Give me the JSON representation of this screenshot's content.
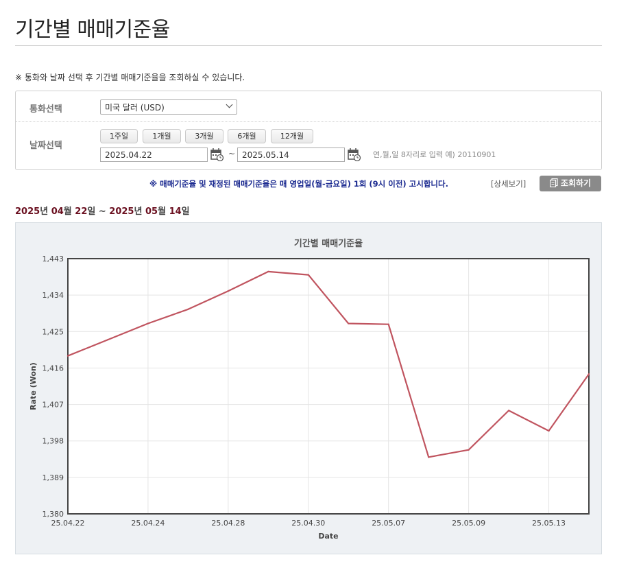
{
  "page_title": "기간별 매매기준율",
  "notice": "※ 통화와 날짜 선택 후 기간별 매매기준율을 조회하실 수 있습니다.",
  "search": {
    "currency_label": "통화선택",
    "currency_value": "미국 달러 (USD)",
    "date_label": "날짜선택",
    "period_buttons": [
      "1주일",
      "1개월",
      "3개월",
      "6개월",
      "12개월"
    ],
    "start_date": "2025.04.22",
    "end_date": "2025.05.14",
    "separator": "~",
    "date_hint": "연,월,일 8자리로 입력 예) 20110901"
  },
  "info": {
    "text": "※ 매매기준율 및 재정된 매매기준율은 매 영업일(월-금요일) 1회 (9시 이전) 고시합니다.",
    "detail_link": "[상세보기]",
    "query_button": "조회하기"
  },
  "range": {
    "y1": "2025",
    "m1": "04",
    "d1": "22",
    "y2": "2025",
    "m2": "05",
    "d2": "14",
    "suffix_year": "년",
    "suffix_month": "월",
    "suffix_day": "일",
    "tilde": " ~ "
  },
  "colors": {
    "line": "#c0545f",
    "title_rule": "#cfcfcf",
    "info_text": "#1b2a90",
    "range_digits": "#6a0f1f",
    "query_button_bg": "#8a8a8a"
  },
  "chart_data": {
    "type": "line",
    "title": "기간별 매매기준율",
    "xlabel": "Date",
    "ylabel": "Rate (Won)",
    "ylim": [
      1380,
      1443
    ],
    "yticks": [
      1380,
      1389,
      1398,
      1407,
      1416,
      1425,
      1434,
      1443
    ],
    "ytick_labels": [
      "1,380",
      "1,389",
      "1,398",
      "1,407",
      "1,416",
      "1,425",
      "1,434",
      "1,443"
    ],
    "x_tick_labels": [
      "25.04.22",
      "25.04.24",
      "25.04.28",
      "25.04.30",
      "25.05.07",
      "25.05.09",
      "25.05.13"
    ],
    "x_tick_indices": [
      0,
      2,
      4,
      6,
      8,
      10,
      12
    ],
    "x": [
      "25.04.22",
      "25.04.23",
      "25.04.24",
      "25.04.25",
      "25.04.28",
      "25.04.29",
      "25.04.30",
      "25.05.02",
      "25.05.07",
      "25.05.08",
      "25.05.09",
      "25.05.12",
      "25.05.13",
      "25.05.14"
    ],
    "series": [
      {
        "values": [
          1419.0,
          1423.0,
          1427.0,
          1430.5,
          1435.0,
          1439.8,
          1439.0,
          1427.0,
          1426.8,
          1394.0,
          1395.8,
          1405.5,
          1400.5,
          1414.5
        ]
      }
    ],
    "grid": true,
    "legend": "none"
  }
}
